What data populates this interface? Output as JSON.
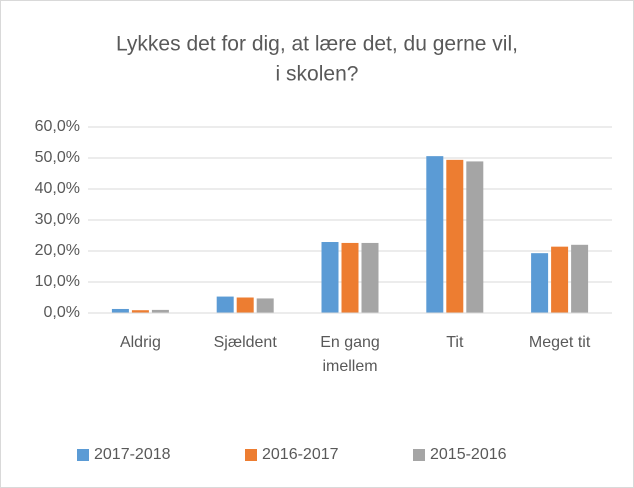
{
  "chart_data": {
    "type": "bar",
    "title": [
      "Lykkes det for dig, at lære det, du gerne vil,",
      "i skolen?"
    ],
    "categories": [
      "Aldrig",
      "Sjældent",
      "En gang imellem",
      "Tit",
      "Meget tit"
    ],
    "series": [
      {
        "name": "2017-2018",
        "color": "#5b9bd5",
        "values": [
          1.3,
          5.3,
          22.9,
          50.6,
          19.3
        ]
      },
      {
        "name": "2016-2017",
        "color": "#ed7d31",
        "values": [
          0.9,
          5.0,
          22.6,
          49.4,
          21.4
        ]
      },
      {
        "name": "2015-2016",
        "color": "#a5a5a5",
        "values": [
          1.0,
          4.7,
          22.6,
          48.9,
          22.0
        ]
      }
    ],
    "ylim": [
      0,
      60
    ],
    "yticks": [
      {
        "value": 0,
        "label": "0,0%"
      },
      {
        "value": 10,
        "label": "10,0%"
      },
      {
        "value": 20,
        "label": "20,0%"
      },
      {
        "value": 30,
        "label": "30,0%"
      },
      {
        "value": 40,
        "label": "40,0%"
      },
      {
        "value": 50,
        "label": "50,0%"
      },
      {
        "value": 60,
        "label": "60,0%"
      }
    ],
    "grid": true,
    "legend": "bottom"
  }
}
